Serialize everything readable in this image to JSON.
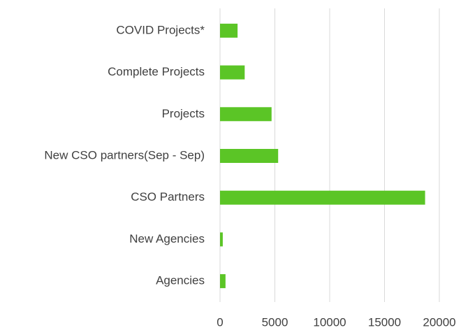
{
  "chart_data": {
    "type": "barh",
    "categories": [
      "COVID Projects*",
      "Complete Projects",
      "Projects",
      "New CSO partners(Sep - Sep)",
      "CSO Partners",
      "New Agencies",
      "Agencies"
    ],
    "values": [
      1600,
      2250,
      4700,
      5300,
      18700,
      250,
      500
    ],
    "color": "#5bc526",
    "xlim": [
      0,
      20000
    ],
    "xticks": [
      0,
      5000,
      10000,
      15000,
      20000
    ],
    "grid": true
  }
}
